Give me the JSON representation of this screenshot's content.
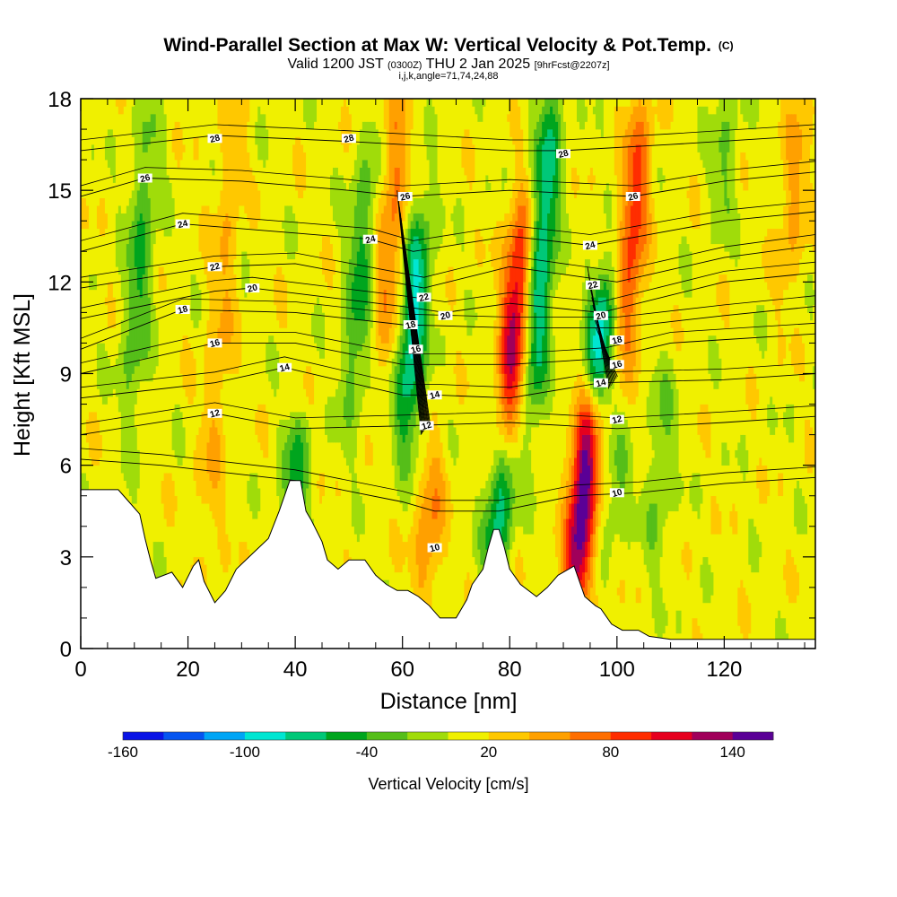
{
  "chart_data": {
    "type": "heatmap",
    "title": "Wind-Parallel Section at Max W: Vertical Velocity & Pot.Temp.",
    "title_mark": "(C)",
    "subtitle_parts": {
      "valid": "Valid 1200 JST",
      "zulu": "(0300Z)",
      "date": "THU 2 Jan 2025",
      "fcst": "[9hrFcst@2207z]"
    },
    "subtitle2": "i,j,k,angle=71,74,24,88",
    "xlabel": "Distance [nm]",
    "ylabel": "Height [Kft MSL]",
    "xlim": [
      0,
      137
    ],
    "ylim": [
      0,
      18
    ],
    "x_ticks": [
      0,
      20,
      40,
      60,
      80,
      100,
      120
    ],
    "y_ticks": [
      0,
      3,
      6,
      9,
      12,
      15,
      18
    ],
    "colorbar": {
      "label": "Vertical Velocity [cm/s]",
      "tick_labels": [
        "-160",
        "-100",
        "-40",
        "20",
        "80",
        "140"
      ],
      "tick_values": [
        -160,
        -100,
        -40,
        20,
        80,
        140
      ],
      "colors": [
        "#0a14e6",
        "#0555f0",
        "#00a5f5",
        "#00e6d2",
        "#00c878",
        "#00a51e",
        "#55be19",
        "#a0dc0a",
        "#f0f000",
        "#ffc800",
        "#ffa000",
        "#ff6e00",
        "#ff2d00",
        "#e6001e",
        "#a0005a",
        "#5a0096"
      ],
      "bounds": [
        -160,
        -140,
        -120,
        -100,
        -80,
        -60,
        -40,
        -20,
        0,
        20,
        40,
        60,
        80,
        100,
        120,
        140,
        160
      ]
    },
    "updrafts": [
      {
        "x": 81,
        "zmin": 7.5,
        "zmax": 14,
        "peak": 115
      },
      {
        "x": 93.5,
        "zmin": 2,
        "zmax": 7.5,
        "peak": 150
      },
      {
        "x": 103,
        "zmin": 10,
        "zmax": 17.5,
        "peak": 80
      },
      {
        "x": 58,
        "zmin": 10,
        "zmax": 18,
        "peak": 55
      },
      {
        "x": 65,
        "zmin": 2,
        "zmax": 6,
        "peak": 50
      },
      {
        "x": 26,
        "zmin": 3,
        "zmax": 18,
        "peak": 30
      },
      {
        "x": 133,
        "zmin": 12,
        "zmax": 18,
        "peak": 35
      }
    ],
    "downdrafts": [
      {
        "x": 62,
        "zmin": 7,
        "zmax": 14,
        "peak": -95
      },
      {
        "x": 86,
        "zmin": 8,
        "zmax": 18,
        "peak": -90
      },
      {
        "x": 97,
        "zmin": 8.5,
        "zmax": 12,
        "peak": -95
      },
      {
        "x": 78,
        "zmin": 3,
        "zmax": 6,
        "peak": -80
      },
      {
        "x": 11,
        "zmin": 8,
        "zmax": 17,
        "peak": -50
      },
      {
        "x": 52,
        "zmin": 8,
        "zmax": 16,
        "peak": -55
      },
      {
        "x": 40,
        "zmin": 4.5,
        "zmax": 7,
        "peak": -55
      },
      {
        "x": 100,
        "zmin": 4,
        "zmax": 6.5,
        "peak": -35
      },
      {
        "x": 108,
        "zmin": 3,
        "zmax": 9,
        "peak": -30
      },
      {
        "x": 120,
        "zmin": 14,
        "zmax": 18,
        "peak": -30
      }
    ],
    "terrain": [
      {
        "x": 0,
        "z": 5.2
      },
      {
        "x": 3,
        "z": 5.2
      },
      {
        "x": 7,
        "z": 5.2
      },
      {
        "x": 9,
        "z": 4.8
      },
      {
        "x": 11,
        "z": 4.4
      },
      {
        "x": 12,
        "z": 3.6
      },
      {
        "x": 13,
        "z": 2.9
      },
      {
        "x": 14,
        "z": 2.3
      },
      {
        "x": 17,
        "z": 2.5
      },
      {
        "x": 19,
        "z": 2.0
      },
      {
        "x": 21,
        "z": 2.7
      },
      {
        "x": 22,
        "z": 2.9
      },
      {
        "x": 23,
        "z": 2.2
      },
      {
        "x": 25,
        "z": 1.5
      },
      {
        "x": 27,
        "z": 1.9
      },
      {
        "x": 29,
        "z": 2.6
      },
      {
        "x": 32,
        "z": 3.1
      },
      {
        "x": 35,
        "z": 3.6
      },
      {
        "x": 37,
        "z": 4.5
      },
      {
        "x": 39,
        "z": 5.5
      },
      {
        "x": 41,
        "z": 5.5
      },
      {
        "x": 42,
        "z": 4.5
      },
      {
        "x": 43,
        "z": 4.2
      },
      {
        "x": 45,
        "z": 3.5
      },
      {
        "x": 46,
        "z": 2.9
      },
      {
        "x": 48,
        "z": 2.6
      },
      {
        "x": 50,
        "z": 2.9
      },
      {
        "x": 53,
        "z": 2.9
      },
      {
        "x": 55,
        "z": 2.4
      },
      {
        "x": 57,
        "z": 2.1
      },
      {
        "x": 59,
        "z": 1.9
      },
      {
        "x": 61,
        "z": 1.9
      },
      {
        "x": 63,
        "z": 1.7
      },
      {
        "x": 65,
        "z": 1.4
      },
      {
        "x": 67,
        "z": 1.0
      },
      {
        "x": 70,
        "z": 1.0
      },
      {
        "x": 72,
        "z": 1.6
      },
      {
        "x": 73,
        "z": 2.1
      },
      {
        "x": 75,
        "z": 2.6
      },
      {
        "x": 76,
        "z": 3.3
      },
      {
        "x": 77,
        "z": 3.9
      },
      {
        "x": 78,
        "z": 3.9
      },
      {
        "x": 79,
        "z": 3.3
      },
      {
        "x": 80,
        "z": 2.6
      },
      {
        "x": 82,
        "z": 2.1
      },
      {
        "x": 85,
        "z": 1.7
      },
      {
        "x": 87,
        "z": 2.0
      },
      {
        "x": 89,
        "z": 2.4
      },
      {
        "x": 92,
        "z": 2.7
      },
      {
        "x": 94,
        "z": 1.7
      },
      {
        "x": 96,
        "z": 1.4
      },
      {
        "x": 97,
        "z": 1.3
      },
      {
        "x": 99,
        "z": 0.8
      },
      {
        "x": 101,
        "z": 0.6
      },
      {
        "x": 104,
        "z": 0.6
      },
      {
        "x": 106,
        "z": 0.4
      },
      {
        "x": 110,
        "z": 0.3
      },
      {
        "x": 137,
        "z": 0.3
      }
    ],
    "theta_lines": [
      {
        "label": "10",
        "pts": [
          [
            0,
            6.2
          ],
          [
            15,
            6.0
          ],
          [
            40,
            5.5
          ],
          [
            60,
            4.8
          ],
          [
            66,
            4.5
          ],
          [
            78,
            4.5
          ],
          [
            92,
            5.0
          ],
          [
            104,
            5.1
          ],
          [
            120,
            5.4
          ],
          [
            137,
            5.6
          ]
        ]
      },
      {
        "label": "12",
        "pts": [
          [
            0,
            7.0
          ],
          [
            25,
            7.7
          ],
          [
            40,
            7.2
          ],
          [
            62,
            7.3
          ],
          [
            80,
            7.4
          ],
          [
            100,
            7.2
          ],
          [
            120,
            7.4
          ],
          [
            137,
            7.6
          ]
        ]
      },
      {
        "label": "14",
        "pts": [
          [
            0,
            8.2
          ],
          [
            25,
            8.7
          ],
          [
            38,
            9.2
          ],
          [
            60,
            8.3
          ],
          [
            66,
            8.3
          ],
          [
            80,
            8.2
          ],
          [
            97,
            8.7
          ],
          [
            120,
            8.8
          ],
          [
            137,
            9.0
          ]
        ]
      },
      {
        "label": "16",
        "pts": [
          [
            0,
            9.0
          ],
          [
            25,
            10.0
          ],
          [
            40,
            10.0
          ],
          [
            60,
            9.3
          ],
          [
            80,
            9.3
          ],
          [
            98,
            9.5
          ],
          [
            110,
            10.0
          ],
          [
            137,
            10.3
          ]
        ]
      },
      {
        "label": "18",
        "pts": [
          [
            0,
            9.8
          ],
          [
            19,
            11.1
          ],
          [
            40,
            11.0
          ],
          [
            60,
            10.6
          ],
          [
            80,
            10.5
          ],
          [
            100,
            10.5
          ],
          [
            120,
            10.9
          ],
          [
            137,
            11.2
          ]
        ]
      },
      {
        "label": "20",
        "pts": [
          [
            0,
            10.8
          ],
          [
            25,
            11.7
          ],
          [
            32,
            11.8
          ],
          [
            60,
            11.2
          ],
          [
            68,
            11.0
          ],
          [
            80,
            11.3
          ],
          [
            97,
            11.0
          ],
          [
            120,
            12.0
          ],
          [
            137,
            12.3
          ]
        ]
      },
      {
        "label": "22",
        "pts": [
          [
            0,
            11.8
          ],
          [
            25,
            12.5
          ],
          [
            40,
            12.6
          ],
          [
            64,
            11.8
          ],
          [
            80,
            12.5
          ],
          [
            100,
            12.0
          ],
          [
            120,
            12.8
          ],
          [
            137,
            13.2
          ]
        ]
      },
      {
        "label": "24",
        "pts": [
          [
            0,
            13.0
          ],
          [
            19,
            13.9
          ],
          [
            40,
            13.6
          ],
          [
            54,
            13.4
          ],
          [
            62,
            13.0
          ],
          [
            80,
            13.5
          ],
          [
            95,
            13.2
          ],
          [
            120,
            14.0
          ],
          [
            137,
            14.3
          ]
        ]
      },
      {
        "label": "26",
        "pts": [
          [
            0,
            14.8
          ],
          [
            12,
            15.4
          ],
          [
            30,
            15.3
          ],
          [
            50,
            15.0
          ],
          [
            60,
            14.8
          ],
          [
            80,
            15.0
          ],
          [
            103,
            14.8
          ],
          [
            120,
            15.3
          ],
          [
            137,
            15.6
          ]
        ]
      },
      {
        "label": "28",
        "pts": [
          [
            0,
            16.3
          ],
          [
            25,
            16.8
          ],
          [
            50,
            16.6
          ],
          [
            80,
            16.3
          ],
          [
            90,
            16.3
          ],
          [
            110,
            16.5
          ],
          [
            137,
            16.8
          ]
        ]
      }
    ],
    "steep_theta": [
      {
        "x_top": 59.0,
        "x_bot": 63.5,
        "ztop": 15.0,
        "zbot": 7.0,
        "n": 12
      },
      {
        "x_top": 94.5,
        "x_bot": 98.5,
        "ztop": 12.5,
        "zbot": 8.5,
        "n": 9
      }
    ],
    "contour_labels": [
      {
        "text": "28",
        "x": 25,
        "y": 16.7
      },
      {
        "text": "28",
        "x": 50,
        "y": 16.7
      },
      {
        "text": "28",
        "x": 90,
        "y": 16.2
      },
      {
        "text": "26",
        "x": 12,
        "y": 15.4
      },
      {
        "text": "26",
        "x": 60.5,
        "y": 14.8
      },
      {
        "text": "26",
        "x": 103,
        "y": 14.8
      },
      {
        "text": "24",
        "x": 19,
        "y": 13.9
      },
      {
        "text": "24",
        "x": 54,
        "y": 13.4
      },
      {
        "text": "24",
        "x": 95,
        "y": 13.2
      },
      {
        "text": "22",
        "x": 25,
        "y": 12.5
      },
      {
        "text": "22",
        "x": 64,
        "y": 11.5
      },
      {
        "text": "22",
        "x": 95.5,
        "y": 11.9
      },
      {
        "text": "20",
        "x": 32,
        "y": 11.8
      },
      {
        "text": "20",
        "x": 68,
        "y": 10.9
      },
      {
        "text": "20",
        "x": 97,
        "y": 10.9
      },
      {
        "text": "18",
        "x": 19,
        "y": 11.1
      },
      {
        "text": "18",
        "x": 61.5,
        "y": 10.6
      },
      {
        "text": "18",
        "x": 100,
        "y": 10.1
      },
      {
        "text": "16",
        "x": 25,
        "y": 10.0
      },
      {
        "text": "16",
        "x": 62.5,
        "y": 9.8
      },
      {
        "text": "16",
        "x": 100,
        "y": 9.3
      },
      {
        "text": "14",
        "x": 38,
        "y": 9.2
      },
      {
        "text": "14",
        "x": 66,
        "y": 8.3
      },
      {
        "text": "14",
        "x": 97,
        "y": 8.7
      },
      {
        "text": "12",
        "x": 25,
        "y": 7.7
      },
      {
        "text": "12",
        "x": 64.5,
        "y": 7.3
      },
      {
        "text": "12",
        "x": 100,
        "y": 7.5
      },
      {
        "text": "10",
        "x": 66,
        "y": 3.3
      },
      {
        "text": "10",
        "x": 100,
        "y": 5.1
      }
    ],
    "grid": false,
    "legend": "bottom"
  }
}
